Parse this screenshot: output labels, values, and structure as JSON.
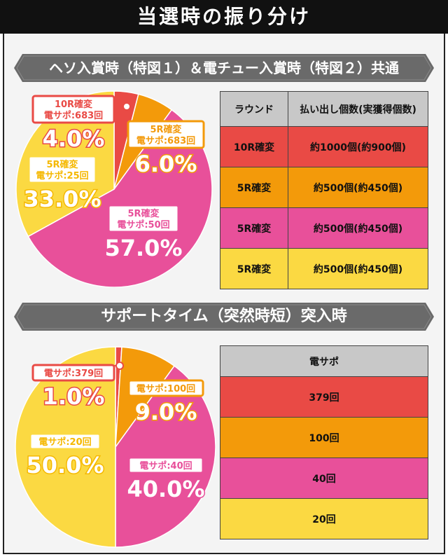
{
  "header": {
    "title": "当選時の振り分け"
  },
  "section1": {
    "heading": "ヘソ入賞時（特図１）＆電チュー入賞時（特図２）共通",
    "table": {
      "headers": [
        "ラウンド",
        "払い出し個数(実獲得個数)"
      ],
      "rows": [
        {
          "round": "10R確変",
          "payout": "約1000個(約900個)",
          "color": "#e94a45"
        },
        {
          "round": "5R確変",
          "payout": "約500個(約450個)",
          "color": "#f39a0a"
        },
        {
          "round": "5R確変",
          "payout": "約500個(約450個)",
          "color": "#e8509a"
        },
        {
          "round": "5R確変",
          "payout": "約500個(約450個)",
          "color": "#fbd942"
        }
      ]
    }
  },
  "section2": {
    "heading": "サポートタイム（突然時短）突入時",
    "table": {
      "headers": [
        "電サポ"
      ],
      "rows": [
        {
          "value": "379回",
          "color": "#e94a45"
        },
        {
          "value": "100回",
          "color": "#f39a0a"
        },
        {
          "value": "40回",
          "color": "#e8509a"
        },
        {
          "value": "20回",
          "color": "#fbd942"
        }
      ]
    }
  },
  "chart_data": [
    {
      "type": "pie",
      "slices": [
        {
          "label_line1": "10R確変",
          "label_line2": "電サポ:683回",
          "value": 4.0,
          "display": "4.0%",
          "color": "#e94a45"
        },
        {
          "label_line1": "5R確変",
          "label_line2": "電サポ:683回",
          "value": 6.0,
          "display": "6.0%",
          "color": "#f39a0a"
        },
        {
          "label_line1": "5R確変",
          "label_line2": "電サポ:50回",
          "value": 57.0,
          "display": "57.0%",
          "color": "#e8509a"
        },
        {
          "label_line1": "5R確変",
          "label_line2": "電サポ:25回",
          "value": 33.0,
          "display": "33.0%",
          "color": "#fbd942"
        }
      ]
    },
    {
      "type": "pie",
      "slices": [
        {
          "label_line1": "電サポ:379回",
          "value": 1.0,
          "display": "1.0%",
          "color": "#e94a45"
        },
        {
          "label_line1": "電サポ:100回",
          "value": 9.0,
          "display": "9.0%",
          "color": "#f39a0a"
        },
        {
          "label_line1": "電サポ:40回",
          "value": 40.0,
          "display": "40.0%",
          "color": "#e8509a"
        },
        {
          "label_line1": "電サポ:20回",
          "value": 50.0,
          "display": "50.0%",
          "color": "#fbd942"
        }
      ]
    }
  ]
}
